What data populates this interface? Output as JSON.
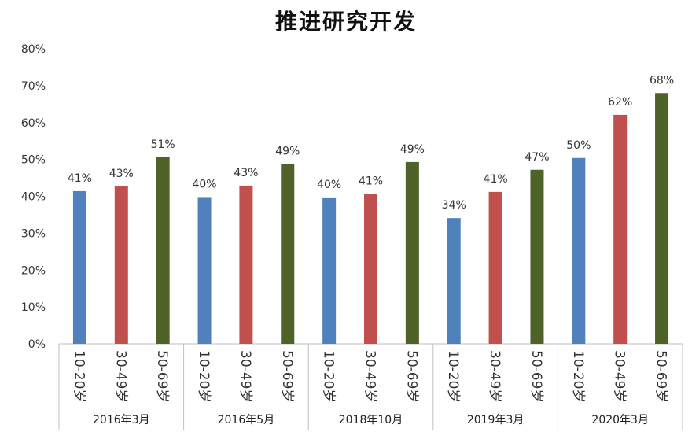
{
  "chart_data": {
    "type": "bar",
    "title": "推进研究开发",
    "xlabel": "",
    "ylabel": "",
    "ylim": [
      0,
      80
    ],
    "y_ticks": [
      "0%",
      "10%",
      "20%",
      "30%",
      "40%",
      "50%",
      "60%",
      "70%",
      "80%"
    ],
    "grid": false,
    "legend": "none",
    "groups": [
      {
        "name": "2016年3月",
        "bars": [
          {
            "category": "10-20岁",
            "value": 41.4,
            "label": "41%",
            "color": "#4F81BD"
          },
          {
            "category": "30-49岁",
            "value": 42.7,
            "label": "43%",
            "color": "#C0504D"
          },
          {
            "category": "50-69岁",
            "value": 50.6,
            "label": "51%",
            "color": "#4F6228"
          }
        ]
      },
      {
        "name": "2016年5月",
        "bars": [
          {
            "category": "10-20岁",
            "value": 39.8,
            "label": "40%",
            "color": "#4F81BD"
          },
          {
            "category": "30-49岁",
            "value": 42.9,
            "label": "43%",
            "color": "#C0504D"
          },
          {
            "category": "50-69岁",
            "value": 48.7,
            "label": "49%",
            "color": "#4F6228"
          }
        ]
      },
      {
        "name": "2018年10月",
        "bars": [
          {
            "category": "10-20岁",
            "value": 39.7,
            "label": "40%",
            "color": "#4F81BD"
          },
          {
            "category": "30-49岁",
            "value": 40.6,
            "label": "41%",
            "color": "#C0504D"
          },
          {
            "category": "50-69岁",
            "value": 49.3,
            "label": "49%",
            "color": "#4F6228"
          }
        ]
      },
      {
        "name": "2019年3月",
        "bars": [
          {
            "category": "10-20岁",
            "value": 34.1,
            "label": "34%",
            "color": "#4F81BD"
          },
          {
            "category": "30-49岁",
            "value": 41.2,
            "label": "41%",
            "color": "#C0504D"
          },
          {
            "category": "50-69岁",
            "value": 47.2,
            "label": "47%",
            "color": "#4F6228"
          }
        ]
      },
      {
        "name": "2020年3月",
        "bars": [
          {
            "category": "10-20岁",
            "value": 50.4,
            "label": "50%",
            "color": "#4F81BD"
          },
          {
            "category": "30-49岁",
            "value": 62.1,
            "label": "62%",
            "color": "#C0504D"
          },
          {
            "category": "50-69岁",
            "value": 68.0,
            "label": "68%",
            "color": "#4F6228"
          }
        ]
      }
    ]
  }
}
